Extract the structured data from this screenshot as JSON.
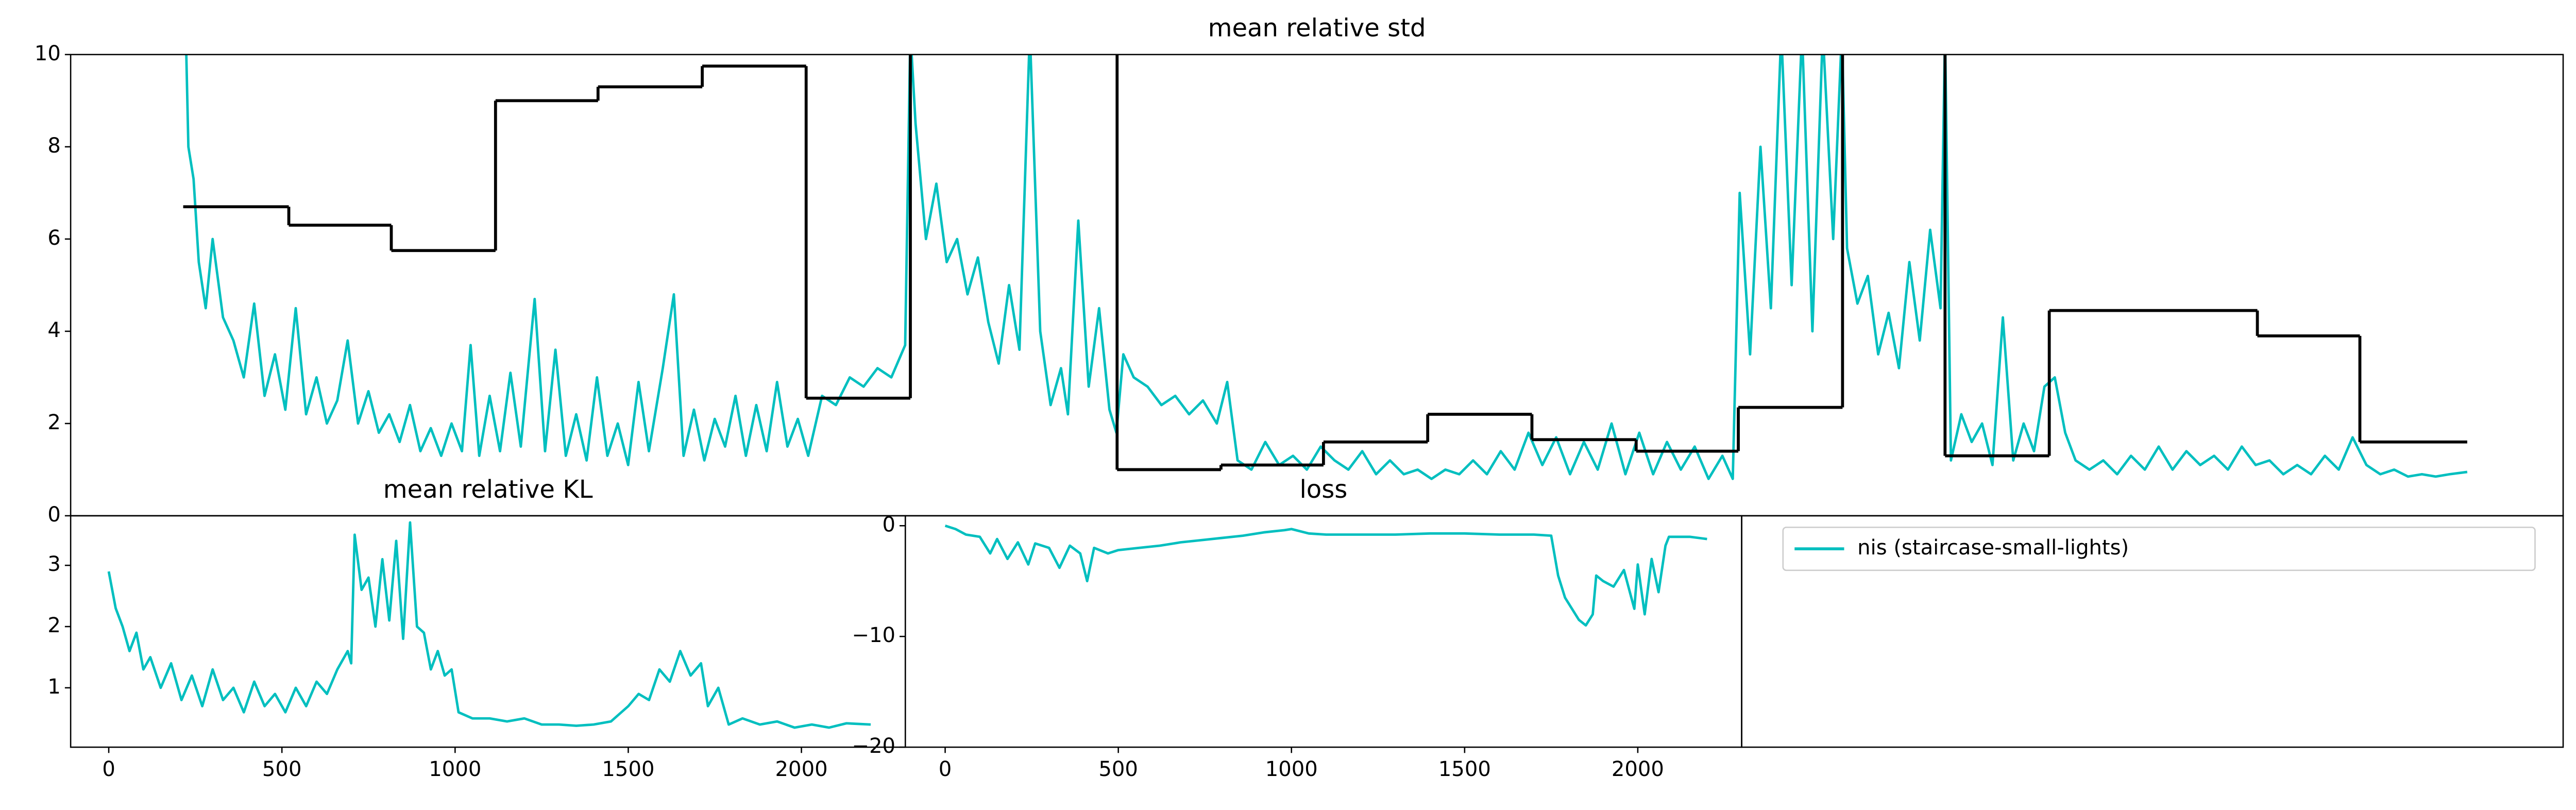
{
  "chart_data": [
    {
      "type": "line",
      "title": "mean relative std",
      "xlim": [
        -110,
        7088
      ],
      "ylim": [
        0,
        10
      ],
      "yticks": [
        0,
        2,
        4,
        6,
        8,
        10
      ],
      "series": [
        {
          "color": "#00bfbf",
          "x": [
            215,
            230,
            245,
            260,
            280,
            300,
            330,
            360,
            390,
            420,
            450,
            480,
            510,
            540,
            570,
            600,
            630,
            660,
            690,
            720,
            750,
            780,
            810,
            840,
            870,
            900,
            930,
            960,
            990,
            1020,
            1045,
            1070,
            1100,
            1130,
            1160,
            1190,
            1230,
            1260,
            1290,
            1320,
            1350,
            1380,
            1410,
            1440,
            1470,
            1500,
            1530,
            1560,
            1600,
            1632,
            1660,
            1690,
            1720,
            1750,
            1780,
            1810,
            1840,
            1870,
            1900,
            1930,
            1960,
            1990,
            2020,
            2060,
            2100,
            2140,
            2180,
            2220,
            2260,
            2300,
            2315,
            2330,
            2360,
            2390,
            2420,
            2450,
            2480,
            2510,
            2540,
            2570,
            2600,
            2630,
            2660,
            2690,
            2720,
            2750,
            2770,
            2800,
            2830,
            2860,
            2890,
            2910,
            2930,
            2960,
            3000,
            3040,
            3080,
            3120,
            3160,
            3200,
            3230,
            3260,
            3300,
            3340,
            3380,
            3420,
            3460,
            3500,
            3540,
            3580,
            3620,
            3660,
            3700,
            3740,
            3780,
            3820,
            3860,
            3900,
            3940,
            3980,
            4020,
            4060,
            4100,
            4140,
            4180,
            4220,
            4260,
            4300,
            4340,
            4380,
            4420,
            4460,
            4500,
            4540,
            4580,
            4620,
            4660,
            4690,
            4710,
            4740,
            4770,
            4800,
            4830,
            4860,
            4890,
            4920,
            4950,
            4980,
            5005,
            5020,
            5050,
            5080,
            5110,
            5140,
            5170,
            5200,
            5230,
            5260,
            5290,
            5303,
            5320,
            5350,
            5380,
            5410,
            5440,
            5470,
            5500,
            5530,
            5560,
            5590,
            5620,
            5650,
            5680,
            5720,
            5760,
            5800,
            5840,
            5880,
            5920,
            5960,
            6000,
            6040,
            6080,
            6120,
            6160,
            6200,
            6240,
            6280,
            6320,
            6360,
            6400,
            6440,
            6480,
            6520,
            6560,
            6600,
            6640,
            6680,
            6720,
            6760,
            6811
          ],
          "values": [
            13,
            8,
            7.3,
            5.5,
            4.5,
            6.0,
            4.3,
            3.8,
            3.0,
            4.6,
            2.6,
            3.5,
            2.3,
            4.5,
            2.2,
            3.0,
            2.0,
            2.5,
            3.8,
            2.0,
            2.7,
            1.8,
            2.2,
            1.6,
            2.4,
            1.4,
            1.9,
            1.3,
            2.0,
            1.4,
            3.7,
            1.3,
            2.6,
            1.4,
            3.1,
            1.5,
            4.7,
            1.4,
            3.6,
            1.3,
            2.2,
            1.2,
            3.0,
            1.3,
            2.0,
            1.1,
            2.9,
            1.4,
            3.2,
            4.8,
            1.3,
            2.3,
            1.2,
            2.1,
            1.5,
            2.6,
            1.3,
            2.4,
            1.4,
            2.9,
            1.5,
            2.1,
            1.3,
            2.6,
            2.4,
            3.0,
            2.8,
            3.2,
            3.0,
            3.7,
            10.5,
            8.5,
            6.0,
            7.2,
            5.5,
            6.0,
            4.8,
            5.6,
            4.2,
            3.3,
            5.0,
            3.6,
            10.5,
            4.0,
            2.4,
            3.2,
            2.2,
            6.4,
            2.8,
            4.5,
            2.3,
            1.8,
            3.5,
            3.0,
            2.8,
            2.4,
            2.6,
            2.2,
            2.5,
            2.0,
            2.9,
            1.2,
            1.0,
            1.6,
            1.1,
            1.3,
            1.0,
            1.5,
            1.2,
            1.0,
            1.4,
            0.9,
            1.2,
            0.9,
            1.0,
            0.8,
            1.0,
            0.9,
            1.2,
            0.9,
            1.4,
            1.0,
            1.8,
            1.1,
            1.7,
            0.9,
            1.6,
            1.0,
            2.0,
            0.9,
            1.8,
            0.9,
            1.6,
            1.0,
            1.5,
            0.8,
            1.3,
            0.8,
            7.0,
            3.5,
            8.0,
            4.5,
            10.5,
            5.0,
            10.5,
            4.0,
            10.5,
            6.0,
            10.5,
            5.8,
            4.6,
            5.2,
            3.5,
            4.4,
            3.2,
            5.5,
            3.8,
            6.2,
            4.5,
            10.5,
            1.2,
            2.2,
            1.6,
            2.0,
            1.1,
            4.3,
            1.2,
            2.0,
            1.4,
            2.8,
            3.0,
            1.8,
            1.2,
            1.0,
            1.2,
            0.9,
            1.3,
            1.0,
            1.5,
            1.0,
            1.4,
            1.1,
            1.3,
            1.0,
            1.5,
            1.1,
            1.2,
            0.9,
            1.1,
            0.9,
            1.3,
            1.0,
            1.7,
            1.1,
            0.9,
            1.0,
            0.85,
            0.9,
            0.85,
            0.9,
            0.95
          ]
        },
        {
          "color": "#000000",
          "step": "post",
          "x": [
            215,
            520,
            816,
            1117,
            1413,
            1714,
            2014,
            2315,
            2912,
            3212,
            3508,
            3809,
            4110,
            4411,
            4706,
            5007,
            5303,
            5604,
            6205,
            6501,
            6811
          ],
          "values": [
            6.7,
            6.3,
            5.75,
            9.0,
            9.3,
            9.75,
            2.55,
            14,
            1.0,
            1.1,
            1.6,
            2.2,
            1.65,
            1.4,
            2.35,
            14,
            1.3,
            4.45,
            3.9,
            1.6,
            1.6
          ]
        }
      ]
    },
    {
      "type": "line",
      "title": "mean relative KL",
      "xlim": [
        -110,
        2300
      ],
      "xticks": [
        0,
        500,
        1000,
        1500,
        2000
      ],
      "ylim": [
        0.03,
        3.81
      ],
      "yticks": [
        1,
        2,
        3
      ],
      "series": [
        {
          "color": "#00bfbf",
          "x": [
            0,
            20,
            40,
            60,
            80,
            100,
            120,
            150,
            180,
            210,
            240,
            270,
            300,
            330,
            360,
            390,
            420,
            450,
            480,
            510,
            540,
            570,
            600,
            630,
            660,
            690,
            700,
            710,
            730,
            750,
            770,
            790,
            810,
            830,
            850,
            870,
            890,
            910,
            930,
            950,
            970,
            990,
            1010,
            1050,
            1100,
            1150,
            1200,
            1250,
            1300,
            1350,
            1400,
            1450,
            1480,
            1500,
            1530,
            1560,
            1590,
            1620,
            1650,
            1680,
            1710,
            1730,
            1760,
            1790,
            1830,
            1880,
            1930,
            1980,
            2030,
            2080,
            2130,
            2200
          ],
          "values": [
            2.9,
            2.3,
            2.0,
            1.6,
            1.9,
            1.3,
            1.5,
            1.0,
            1.4,
            0.8,
            1.2,
            0.7,
            1.3,
            0.8,
            1.0,
            0.6,
            1.1,
            0.7,
            0.9,
            0.6,
            1.0,
            0.7,
            1.1,
            0.9,
            1.3,
            1.6,
            1.4,
            3.5,
            2.6,
            2.8,
            2.0,
            3.1,
            2.1,
            3.4,
            1.8,
            3.7,
            2.0,
            1.9,
            1.3,
            1.6,
            1.2,
            1.3,
            0.6,
            0.5,
            0.5,
            0.45,
            0.5,
            0.4,
            0.4,
            0.38,
            0.4,
            0.45,
            0.6,
            0.7,
            0.9,
            0.8,
            1.3,
            1.1,
            1.6,
            1.2,
            1.4,
            0.7,
            1.0,
            0.4,
            0.5,
            0.4,
            0.45,
            0.35,
            0.4,
            0.35,
            0.42,
            0.4
          ]
        }
      ]
    },
    {
      "type": "line",
      "title": "loss",
      "xlim": [
        -115,
        2300
      ],
      "xticks": [
        0,
        500,
        1000,
        1500,
        2000
      ],
      "ylim": [
        -20,
        0.9
      ],
      "yticks": [
        0,
        {
          "value": -10,
          "label": "−10"
        },
        {
          "value": -20,
          "label": "−20"
        }
      ],
      "series": [
        {
          "color": "#00bfbf",
          "x": [
            0,
            30,
            60,
            100,
            130,
            150,
            180,
            210,
            240,
            260,
            300,
            330,
            360,
            390,
            410,
            430,
            470,
            500,
            560,
            620,
            680,
            740,
            800,
            860,
            920,
            980,
            1000,
            1050,
            1100,
            1200,
            1300,
            1400,
            1500,
            1600,
            1700,
            1750,
            1770,
            1790,
            1810,
            1830,
            1850,
            1870,
            1880,
            1900,
            1930,
            1960,
            1990,
            2000,
            2020,
            2040,
            2060,
            2080,
            2090,
            2150,
            2200
          ],
          "values": [
            0,
            -0.3,
            -0.8,
            -1.0,
            -2.5,
            -1.2,
            -3.0,
            -1.5,
            -3.5,
            -1.6,
            -2.0,
            -3.8,
            -1.8,
            -2.5,
            -5.0,
            -2.0,
            -2.5,
            -2.2,
            -2.0,
            -1.8,
            -1.5,
            -1.3,
            -1.1,
            -0.9,
            -0.6,
            -0.4,
            -0.3,
            -0.7,
            -0.8,
            -0.8,
            -0.8,
            -0.7,
            -0.7,
            -0.8,
            -0.8,
            -0.9,
            -4.5,
            -6.5,
            -7.5,
            -8.5,
            -9.0,
            -8.0,
            -4.5,
            -5.0,
            -5.5,
            -4.0,
            -7.5,
            -3.5,
            -8.0,
            -3.0,
            -6.0,
            -1.8,
            -1.0,
            -1.0,
            -1.2
          ]
        }
      ]
    },
    {
      "type": "legend",
      "series": [
        {
          "name": "nis (staircase-small-lights)",
          "color": "#00bfbf"
        }
      ]
    }
  ]
}
